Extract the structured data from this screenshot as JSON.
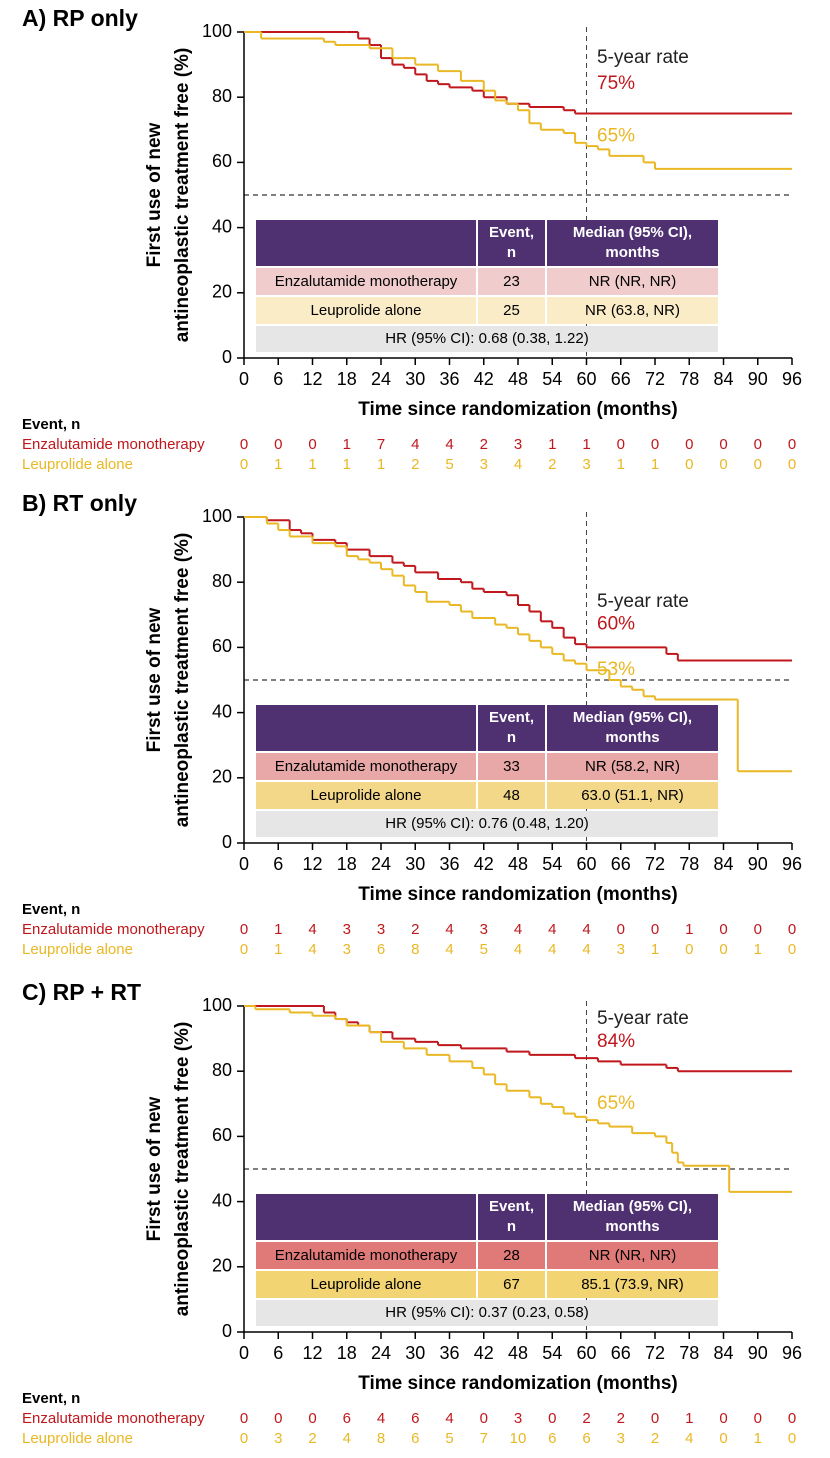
{
  "chart_data": [
    {
      "type": "step",
      "title": "A) RP only",
      "y_label": [
        "First use of new",
        "antineoplastic treatment free (%)"
      ],
      "x_label": "Time since randomization (months)",
      "xlim": [
        0,
        96
      ],
      "xticks": [
        0,
        6,
        12,
        18,
        24,
        30,
        36,
        42,
        48,
        54,
        60,
        66,
        72,
        78,
        84,
        90,
        96
      ],
      "ylim": [
        0,
        100
      ],
      "yticks": [
        0,
        20,
        40,
        60,
        80,
        100
      ],
      "hline": 50,
      "vline": 60,
      "series": [
        {
          "name": "Enzalutamide monotherapy",
          "color": "#c0171c",
          "x": [
            0,
            18,
            20,
            22,
            24,
            26,
            28,
            30,
            32,
            34,
            36,
            40,
            42,
            46,
            50,
            56,
            58,
            96
          ],
          "values": [
            100,
            100,
            98,
            96,
            92,
            90,
            89,
            87,
            85,
            84,
            83,
            82,
            80,
            78,
            77,
            76,
            75,
            75
          ]
        },
        {
          "name": "Leuprolide alone",
          "color": "#e9b824",
          "x": [
            0,
            3,
            12,
            14,
            16,
            22,
            26,
            30,
            34,
            38,
            42,
            44,
            46,
            48,
            50,
            52,
            56,
            58,
            60,
            62,
            64,
            70,
            72,
            96
          ],
          "values": [
            100,
            98,
            98,
            97,
            96,
            95,
            92,
            90,
            88,
            85,
            82,
            79,
            78,
            76,
            72,
            70,
            69,
            66,
            65,
            64,
            62,
            60,
            58,
            58
          ]
        }
      ],
      "annotations": [
        "5-year rate",
        "75%",
        "65%"
      ],
      "table": {
        "header": [
          [
            "Event,",
            "n"
          ],
          [
            "Median (95% CI),",
            "months"
          ]
        ],
        "header_color": "#4f3172",
        "rows": [
          [
            "23",
            "NR (NR, NR)"
          ],
          [
            "25",
            "NR (63.8, NR)"
          ]
        ],
        "row_colors": [
          "#f0cccc",
          "#fbecc8"
        ],
        "footer": "HR (95% CI): 0.68 (0.38, 1.22)",
        "footer_color": "#e6e6e6"
      },
      "events": {
        "title": "Event, n",
        "rows": [
          [
            0,
            0,
            0,
            1,
            7,
            4,
            4,
            2,
            3,
            1,
            1,
            0,
            0,
            0,
            0,
            0,
            0
          ],
          [
            0,
            1,
            1,
            1,
            1,
            2,
            5,
            3,
            4,
            2,
            3,
            1,
            1,
            0,
            0,
            0,
            0
          ]
        ]
      }
    },
    {
      "type": "step",
      "title": "B) RT only",
      "y_label": [
        "First use of new",
        "antineoplastic treatment free (%)"
      ],
      "x_label": "Time since randomization (months)",
      "xlim": [
        0,
        96
      ],
      "xticks": [
        0,
        6,
        12,
        18,
        24,
        30,
        36,
        42,
        48,
        54,
        60,
        66,
        72,
        78,
        84,
        90,
        96
      ],
      "ylim": [
        0,
        100
      ],
      "yticks": [
        0,
        20,
        40,
        60,
        80,
        100
      ],
      "hline": 50,
      "vline": 60,
      "series": [
        {
          "name": "Enzalutamide monotherapy",
          "color": "#c0171c",
          "x": [
            0,
            4,
            8,
            10,
            12,
            16,
            18,
            22,
            26,
            28,
            30,
            34,
            38,
            40,
            42,
            46,
            48,
            50,
            52,
            54,
            56,
            58,
            60,
            74,
            76,
            96
          ],
          "values": [
            100,
            99,
            96,
            95,
            93,
            92,
            90,
            88,
            86,
            85,
            83,
            81,
            80,
            78,
            77,
            76,
            73,
            71,
            68,
            66,
            63,
            61,
            60,
            58,
            56,
            56
          ]
        },
        {
          "name": "Leuprolide alone",
          "color": "#e9b824",
          "x": [
            0,
            4,
            6,
            8,
            12,
            16,
            18,
            20,
            22,
            24,
            26,
            28,
            30,
            32,
            36,
            38,
            40,
            44,
            46,
            48,
            50,
            52,
            54,
            56,
            58,
            60,
            64,
            66,
            68,
            70,
            72,
            86,
            86.5,
            96
          ],
          "values": [
            100,
            98,
            96,
            94,
            92,
            91,
            88,
            87,
            86,
            84,
            82,
            79,
            77,
            74,
            73,
            71,
            69,
            67,
            66,
            64,
            62,
            60,
            58,
            56,
            55,
            53,
            50,
            48,
            47,
            45,
            44,
            44,
            22,
            22
          ]
        }
      ],
      "annotations": [
        "5-year rate",
        "60%",
        "53%"
      ],
      "table": {
        "header": [
          [
            "Event,",
            "n"
          ],
          [
            "Median (95% CI),",
            "months"
          ]
        ],
        "header_color": "#4f3172",
        "rows": [
          [
            "33",
            "NR (58.2, NR)"
          ],
          [
            "48",
            "63.0 (51.1, NR)"
          ]
        ],
        "row_colors": [
          "#e8a8a8",
          "#f3d88a"
        ],
        "footer": "HR (95% CI): 0.76 (0.48, 1.20)",
        "footer_color": "#e6e6e6"
      },
      "events": {
        "title": "Event, n",
        "rows": [
          [
            0,
            1,
            4,
            3,
            3,
            2,
            4,
            3,
            4,
            4,
            4,
            0,
            0,
            1,
            0,
            0,
            0
          ],
          [
            0,
            1,
            4,
            3,
            6,
            8,
            4,
            5,
            4,
            4,
            4,
            3,
            1,
            0,
            0,
            1,
            0
          ]
        ]
      }
    },
    {
      "type": "step",
      "title": "C) RP + RT",
      "y_label": [
        "First use of new",
        "antineoplastic treatment free (%)"
      ],
      "x_label": "Time since randomization (months)",
      "xlim": [
        0,
        96
      ],
      "xticks": [
        0,
        6,
        12,
        18,
        24,
        30,
        36,
        42,
        48,
        54,
        60,
        66,
        72,
        78,
        84,
        90,
        96
      ],
      "ylim": [
        0,
        100
      ],
      "yticks": [
        0,
        20,
        40,
        60,
        80,
        100
      ],
      "hline": 50,
      "vline": 60,
      "series": [
        {
          "name": "Enzalutamide monotherapy",
          "color": "#c0171c",
          "x": [
            0,
            12,
            14,
            16,
            18,
            20,
            22,
            26,
            30,
            34,
            38,
            46,
            50,
            58,
            62,
            66,
            74,
            76,
            96
          ],
          "values": [
            100,
            100,
            98,
            96,
            95,
            94,
            92,
            90,
            89,
            88,
            87,
            86,
            85,
            84,
            83,
            82,
            81,
            80,
            80
          ]
        },
        {
          "name": "Leuprolide alone",
          "color": "#e9b824",
          "x": [
            0,
            2,
            8,
            12,
            16,
            18,
            22,
            24,
            28,
            32,
            36,
            40,
            42,
            44,
            46,
            50,
            52,
            54,
            56,
            58,
            60,
            62,
            64,
            68,
            72,
            74,
            75,
            76,
            77,
            84,
            85,
            96
          ],
          "values": [
            100,
            99,
            98,
            97,
            96,
            94,
            92,
            89,
            87,
            85,
            83,
            81,
            79,
            76,
            74,
            72,
            70,
            69,
            67,
            66,
            65,
            64,
            63,
            61,
            60,
            58,
            55,
            52,
            51,
            51,
            43,
            43
          ]
        }
      ],
      "annotations": [
        "5-year rate",
        "84%",
        "65%"
      ],
      "table": {
        "header": [
          [
            "Event,",
            "n"
          ],
          [
            "Median (95% CI),",
            "months"
          ]
        ],
        "header_color": "#4f3172",
        "rows": [
          [
            "28",
            "NR (NR, NR)"
          ],
          [
            "67",
            "85.1 (73.9, NR)"
          ]
        ],
        "row_colors": [
          "#e07a78",
          "#f2d472"
        ],
        "footer": "HR (95% CI): 0.37 (0.23, 0.58)",
        "footer_color": "#e6e6e6"
      },
      "events": {
        "title": "Event, n",
        "rows": [
          [
            0,
            0,
            0,
            6,
            4,
            6,
            4,
            0,
            3,
            0,
            2,
            2,
            0,
            1,
            0,
            0,
            0
          ],
          [
            0,
            3,
            2,
            4,
            8,
            6,
            5,
            7,
            10,
            6,
            6,
            3,
            2,
            4,
            0,
            1,
            0
          ]
        ]
      }
    }
  ]
}
